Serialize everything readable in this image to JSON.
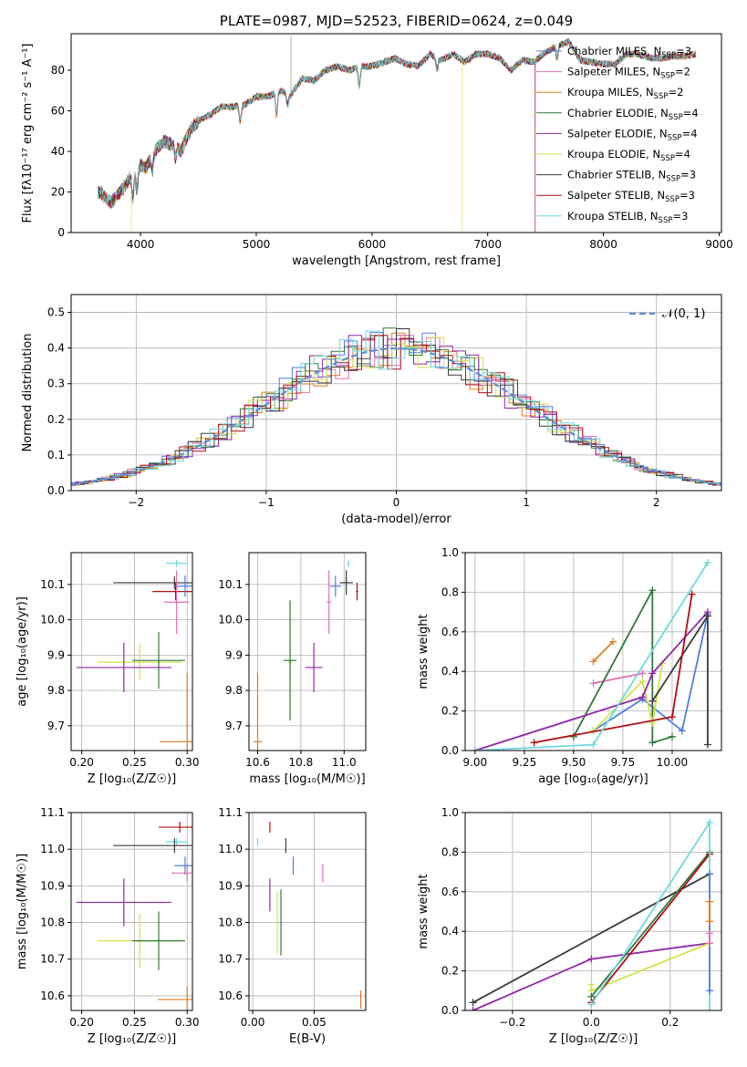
{
  "colors": {
    "chabrier_miles": "#4f7fe0",
    "salpeter_miles": "#e06fb5",
    "kroupa_miles": "#e07b1e",
    "chabrier_elodie": "#2f7a3a",
    "salpeter_elodie": "#9226a8",
    "kroupa_elodie": "#d3e24a",
    "chabrier_stelib": "#3a3a3a",
    "salpeter_stelib": "#b00e10",
    "kroupa_stelib": "#6ed8df",
    "normal": "#5b8fd6"
  },
  "chart_data": [
    {
      "id": "spectrum",
      "type": "line",
      "title": "PLATE=0987, MJD=52523, FIBERID=0624, z=0.049",
      "xlabel": "wavelength [Angstrom, rest frame]",
      "ylabel": "Flux [fλ10⁻¹⁷ erg cm⁻² s⁻¹ A⁻¹]",
      "xlim": [
        3400,
        9020
      ],
      "ylim": [
        0,
        98
      ],
      "xticks": [
        4000,
        5000,
        6000,
        7000,
        8000,
        9000
      ],
      "yticks": [
        0,
        20,
        40,
        60,
        80
      ],
      "grid": false,
      "legend_position": "right",
      "x": [
        3650,
        3700,
        3750,
        3800,
        3850,
        3900,
        3950,
        4000,
        4050,
        4100,
        4150,
        4200,
        4250,
        4300,
        4350,
        4400,
        4450,
        4500,
        4600,
        4700,
        4800,
        4900,
        5000,
        5100,
        5200,
        5300,
        5400,
        5500,
        5600,
        5700,
        5800,
        5900,
        6000,
        6100,
        6200,
        6300,
        6400,
        6500,
        6600,
        6700,
        6800,
        6900,
        7000,
        7100,
        7200,
        7300,
        7400,
        7500,
        7600,
        7700,
        7800,
        7900,
        8000,
        8100,
        8200,
        8300,
        8400,
        8500,
        8600,
        8700,
        8800
      ],
      "y": [
        20,
        17,
        15,
        18,
        22,
        26,
        30,
        33,
        32,
        38,
        42,
        45,
        44,
        43,
        40,
        47,
        52,
        55,
        58,
        62,
        62,
        63,
        67,
        67,
        70,
        68,
        76,
        75,
        80,
        82,
        80,
        82,
        82,
        84,
        86,
        83,
        82,
        88,
        85,
        88,
        84,
        88,
        88,
        86,
        80,
        85,
        84,
        89,
        92,
        94,
        85,
        84,
        83,
        83,
        88,
        88,
        86,
        86,
        87,
        87,
        88
      ],
      "series": [
        {
          "name": "Chabrier MILES, N",
          "n": "=3",
          "color_key": "chabrier_miles"
        },
        {
          "name": "Salpeter MILES, N",
          "n": "=2",
          "color_key": "salpeter_miles"
        },
        {
          "name": "Kroupa MILES, N",
          "n": "=2",
          "color_key": "kroupa_miles"
        },
        {
          "name": "Chabrier ELODIE, N",
          "n": "=4",
          "color_key": "chabrier_elodie"
        },
        {
          "name": "Salpeter ELODIE, N",
          "n": "=4",
          "color_key": "salpeter_elodie"
        },
        {
          "name": "Kroupa ELODIE, N",
          "n": "=4",
          "color_key": "kroupa_elodie"
        },
        {
          "name": "Chabrier STELIB, N",
          "n": "=3",
          "color_key": "chabrier_stelib"
        },
        {
          "name": "Salpeter STELIB, N",
          "n": "=3",
          "color_key": "salpeter_stelib"
        },
        {
          "name": "Kroupa STELIB, N",
          "n": "=3",
          "color_key": "kroupa_stelib"
        }
      ],
      "legend_subscript": "SSP",
      "dropouts": [
        {
          "x": 3920,
          "color_key": "kroupa_elodie"
        },
        {
          "x": 6780,
          "color_key": "kroupa_elodie"
        },
        {
          "x": 7410,
          "color_key": "salpeter_stelib"
        }
      ]
    },
    {
      "id": "residuals",
      "type": "histogram",
      "xlabel": "(data-model)/error",
      "ylabel": "Normed distribution",
      "xlim": [
        -2.5,
        2.5
      ],
      "ylim": [
        0,
        0.55
      ],
      "xticks": [
        -2,
        -1,
        0,
        1,
        2
      ],
      "yticks": [
        0.0,
        0.1,
        0.2,
        0.3,
        0.4,
        0.5
      ],
      "grid": true,
      "legend_position": "top-right",
      "legend": "𝒩(0, 1)",
      "bin_width": 0.1
    },
    {
      "id": "age_vs_z",
      "type": "errorbar",
      "xlabel": "Z [log₁₀(Z/Z☉)]",
      "ylabel": "age  [log₁₀(age/yr)]",
      "xlim": [
        0.19,
        0.305
      ],
      "ylim": [
        9.63,
        10.19
      ],
      "xticks": [
        0.2,
        0.25,
        0.3
      ],
      "yticks": [
        9.7,
        9.8,
        9.9,
        10.0,
        10.1
      ],
      "grid": true,
      "points": [
        {
          "x": 0.29,
          "y": 10.16,
          "xerr": 0.01,
          "yerr": 0.01,
          "color_key": "kroupa_stelib"
        },
        {
          "x": 0.288,
          "y": 10.105,
          "xerr": 0.058,
          "yerr": 0.018,
          "color_key": "chabrier_stelib"
        },
        {
          "x": 0.289,
          "y": 10.08,
          "xerr": 0.022,
          "yerr": 0.025,
          "color_key": "salpeter_stelib"
        },
        {
          "x": 0.298,
          "y": 10.095,
          "xerr": 0.01,
          "yerr": 0.03,
          "color_key": "chabrier_miles"
        },
        {
          "x": 0.29,
          "y": 10.05,
          "xerr": 0.012,
          "yerr": 0.09,
          "color_key": "salpeter_miles"
        },
        {
          "x": 0.3,
          "y": 9.655,
          "xerr": 0.026,
          "yerr": 0.195,
          "color_key": "kroupa_miles"
        },
        {
          "x": 0.255,
          "y": 9.88,
          "xerr": 0.04,
          "yerr": 0.05,
          "color_key": "kroupa_elodie"
        },
        {
          "x": 0.273,
          "y": 9.885,
          "xerr": 0.025,
          "yerr": 0.08,
          "color_key": "chabrier_elodie"
        },
        {
          "x": 0.24,
          "y": 9.865,
          "xerr": 0.045,
          "yerr": 0.07,
          "color_key": "salpeter_elodie"
        }
      ]
    },
    {
      "id": "age_vs_mass",
      "type": "errorbar",
      "xlabel": "mass [log₁₀(M/M☉)]",
      "ylabel": "",
      "xlim": [
        10.56,
        11.1
      ],
      "ylim": [
        9.63,
        10.19
      ],
      "xticks": [
        10.6,
        10.8,
        11.0
      ],
      "yticks": [
        9.7,
        9.8,
        9.9,
        10.0,
        10.1
      ],
      "grid": true,
      "points": [
        {
          "x": 11.02,
          "y": 10.16,
          "xerr": 0.005,
          "yerr": 0.01,
          "color_key": "kroupa_stelib"
        },
        {
          "x": 11.01,
          "y": 10.105,
          "xerr": 0.03,
          "yerr": 0.035,
          "color_key": "chabrier_stelib"
        },
        {
          "x": 11.06,
          "y": 10.08,
          "xerr": 0.005,
          "yerr": 0.025,
          "color_key": "salpeter_stelib"
        },
        {
          "x": 10.96,
          "y": 10.095,
          "xerr": 0.025,
          "yerr": 0.03,
          "color_key": "chabrier_miles"
        },
        {
          "x": 10.93,
          "y": 10.05,
          "xerr": 0.01,
          "yerr": 0.09,
          "color_key": "salpeter_miles"
        },
        {
          "x": 10.6,
          "y": 9.655,
          "xerr": 0.02,
          "yerr": 0.195,
          "color_key": "kroupa_miles"
        },
        {
          "x": 10.75,
          "y": 9.88,
          "xerr": 0.01,
          "yerr": 0.05,
          "color_key": "kroupa_elodie"
        },
        {
          "x": 10.75,
          "y": 9.885,
          "xerr": 0.03,
          "yerr": 0.17,
          "color_key": "chabrier_elodie"
        },
        {
          "x": 10.86,
          "y": 9.865,
          "xerr": 0.04,
          "yerr": 0.07,
          "color_key": "salpeter_elodie"
        }
      ]
    },
    {
      "id": "mass_weight_vs_age",
      "type": "line",
      "xlabel": "age  [log₁₀(age/yr)]",
      "ylabel": "mass weight",
      "xlim": [
        8.95,
        10.25
      ],
      "ylim": [
        0,
        1.0
      ],
      "xticks": [
        9.0,
        9.25,
        9.5,
        9.75,
        10.0
      ],
      "yticks": [
        0.0,
        0.2,
        0.4,
        0.6,
        0.8,
        1.0
      ],
      "grid": true,
      "series": [
        {
          "color_key": "kroupa_miles",
          "x": [
            9.6,
            9.7
          ],
          "y": [
            0.45,
            0.55
          ]
        },
        {
          "color_key": "salpeter_miles",
          "x": [
            9.6,
            9.85
          ],
          "y": [
            0.34,
            0.39
          ]
        },
        {
          "color_key": "chabrier_miles",
          "x": [
            9.6,
            9.85,
            10.05,
            10.18
          ],
          "y": [
            0.1,
            0.26,
            0.1,
            0.69
          ]
        },
        {
          "color_key": "chabrier_elodie",
          "x": [
            9.5,
            9.9,
            9.9,
            10.0
          ],
          "y": [
            0.07,
            0.81,
            0.04,
            0.07
          ]
        },
        {
          "color_key": "kroupa_elodie",
          "x": [
            9.6,
            9.85,
            9.9,
            9.95
          ],
          "y": [
            0.1,
            0.35,
            0.14,
            0.44
          ]
        },
        {
          "color_key": "salpeter_elodie",
          "x": [
            9.0,
            9.85,
            9.9,
            10.18
          ],
          "y": [
            0.0,
            0.27,
            0.39,
            0.7
          ]
        },
        {
          "color_key": "chabrier_stelib",
          "x": [
            9.9,
            10.18,
            10.18
          ],
          "y": [
            0.25,
            0.68,
            0.03
          ]
        },
        {
          "color_key": "salpeter_stelib",
          "x": [
            9.3,
            10.0,
            10.1
          ],
          "y": [
            0.04,
            0.17,
            0.79
          ]
        },
        {
          "color_key": "kroupa_stelib",
          "x": [
            9.0,
            9.6,
            10.18
          ],
          "y": [
            0.0,
            0.03,
            0.95
          ]
        }
      ]
    },
    {
      "id": "mass_vs_z",
      "type": "errorbar",
      "xlabel": "Z [log₁₀(Z/Z☉)]",
      "ylabel": "mass [log₁₀(M/M☉)]",
      "xlim": [
        0.19,
        0.305
      ],
      "ylim": [
        10.56,
        11.1
      ],
      "xticks": [
        0.2,
        0.25,
        0.3
      ],
      "yticks": [
        10.6,
        10.7,
        10.8,
        10.9,
        11.0,
        11.1
      ],
      "grid": true,
      "points": [
        {
          "x": 0.293,
          "y": 11.06,
          "xerr": 0.02,
          "yerr": 0.015,
          "color_key": "salpeter_stelib"
        },
        {
          "x": 0.29,
          "y": 11.02,
          "xerr": 0.01,
          "yerr": 0.01,
          "color_key": "kroupa_stelib"
        },
        {
          "x": 0.288,
          "y": 11.01,
          "xerr": 0.058,
          "yerr": 0.02,
          "color_key": "chabrier_stelib"
        },
        {
          "x": 0.298,
          "y": 10.955,
          "xerr": 0.01,
          "yerr": 0.025,
          "color_key": "chabrier_miles"
        },
        {
          "x": 0.3,
          "y": 10.935,
          "xerr": 0.015,
          "yerr": 0.025,
          "color_key": "salpeter_miles"
        },
        {
          "x": 0.3,
          "y": 10.59,
          "xerr": 0.028,
          "yerr": 0.035,
          "color_key": "kroupa_miles"
        },
        {
          "x": 0.24,
          "y": 10.855,
          "xerr": 0.045,
          "yerr": 0.065,
          "color_key": "salpeter_elodie"
        },
        {
          "x": 0.255,
          "y": 10.75,
          "xerr": 0.04,
          "yerr": 0.075,
          "color_key": "kroupa_elodie"
        },
        {
          "x": 0.273,
          "y": 10.75,
          "xerr": 0.025,
          "yerr": 0.08,
          "color_key": "chabrier_elodie"
        }
      ]
    },
    {
      "id": "mass_vs_ebv",
      "type": "errorbar",
      "xlabel": "E(B-V)",
      "ylabel": "",
      "xlim": [
        -0.003,
        0.092
      ],
      "ylim": [
        10.56,
        11.1
      ],
      "xticks": [
        0.0,
        0.05
      ],
      "yticks": [
        10.6,
        10.7,
        10.8,
        10.9,
        11.0,
        11.1
      ],
      "grid": true,
      "points": [
        {
          "x": 0.014,
          "y": 11.06,
          "xerr": 0.0,
          "yerr": 0.015,
          "color_key": "salpeter_stelib"
        },
        {
          "x": 0.004,
          "y": 11.02,
          "xerr": 0.0,
          "yerr": 0.01,
          "color_key": "kroupa_stelib"
        },
        {
          "x": 0.027,
          "y": 11.01,
          "xerr": 0.0,
          "yerr": 0.02,
          "color_key": "chabrier_stelib"
        },
        {
          "x": 0.033,
          "y": 10.955,
          "xerr": 0.0,
          "yerr": 0.025,
          "color_key": "chabrier_miles"
        },
        {
          "x": 0.057,
          "y": 10.935,
          "xerr": 0.0,
          "yerr": 0.025,
          "color_key": "salpeter_miles"
        },
        {
          "x": 0.088,
          "y": 10.59,
          "xerr": 0.0,
          "yerr": 0.025,
          "color_key": "kroupa_miles"
        },
        {
          "x": 0.014,
          "y": 10.875,
          "xerr": 0.0,
          "yerr": 0.045,
          "color_key": "salpeter_elodie"
        },
        {
          "x": 0.02,
          "y": 10.8,
          "xerr": 0.0,
          "yerr": 0.085,
          "color_key": "kroupa_elodie"
        },
        {
          "x": 0.023,
          "y": 10.8,
          "xerr": 0.0,
          "yerr": 0.09,
          "color_key": "chabrier_elodie"
        }
      ]
    },
    {
      "id": "mass_weight_vs_z",
      "type": "line",
      "xlabel": "Z [log₁₀(Z/Z☉)]",
      "ylabel": "mass weight",
      "xlim": [
        -0.32,
        0.33
      ],
      "ylim": [
        0,
        1.0
      ],
      "xticks": [
        -0.2,
        0.0,
        0.2
      ],
      "yticks": [
        0.0,
        0.2,
        0.4,
        0.6,
        0.8,
        1.0
      ],
      "grid": true,
      "series": [
        {
          "color_key": "chabrier_stelib",
          "x": [
            -0.3,
            0.3
          ],
          "y": [
            0.04,
            0.69
          ]
        },
        {
          "color_key": "salpeter_elodie",
          "x": [
            -0.3,
            0.0,
            0.3
          ],
          "y": [
            0.0,
            0.26,
            0.34
          ]
        },
        {
          "color_key": "kroupa_elodie",
          "x": [
            0.0,
            0.0,
            0.3
          ],
          "y": [
            0.13,
            0.1,
            0.34
          ]
        },
        {
          "color_key": "chabrier_elodie",
          "x": [
            0.0,
            0.3
          ],
          "y": [
            0.07,
            0.8
          ]
        },
        {
          "color_key": "salpeter_stelib",
          "x": [
            0.0,
            0.3
          ],
          "y": [
            0.04,
            0.79
          ]
        },
        {
          "color_key": "kroupa_stelib",
          "x": [
            0.0,
            0.3,
            0.3
          ],
          "y": [
            0.03,
            0.95,
            0.0
          ]
        },
        {
          "color_key": "chabrier_miles",
          "x": [
            0.3,
            0.3
          ],
          "y": [
            0.1,
            0.69
          ]
        },
        {
          "color_key": "salpeter_miles",
          "x": [
            0.3,
            0.3
          ],
          "y": [
            0.34,
            0.39
          ]
        },
        {
          "color_key": "kroupa_miles",
          "x": [
            0.3,
            0.3
          ],
          "y": [
            0.45,
            0.55
          ]
        }
      ]
    }
  ]
}
